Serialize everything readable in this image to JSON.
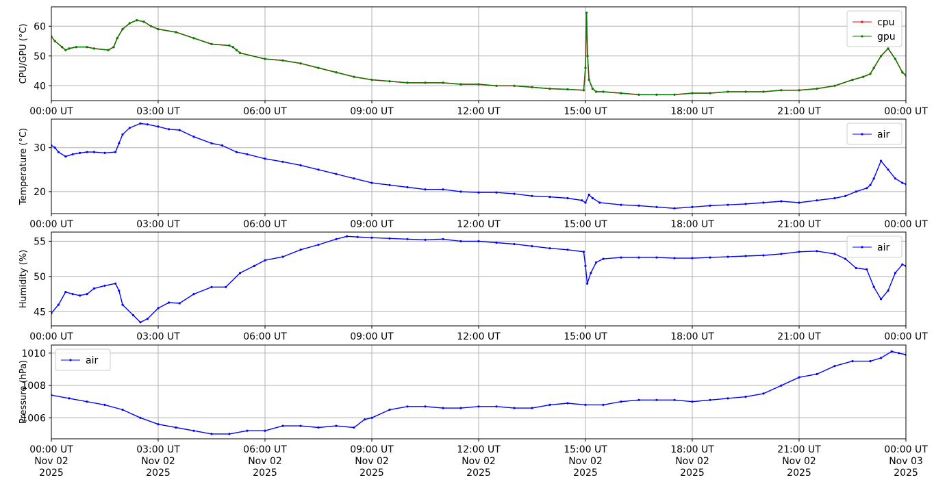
{
  "chart_data": [
    {
      "type": "line",
      "ylabel": "CPU/GPU (°C)",
      "xlabel": "",
      "ylim": [
        35,
        66.5
      ],
      "yticks": [
        40,
        50,
        60
      ],
      "grid": true,
      "legend_position": "upper-right",
      "x_unit": "hours UT, Nov 02 2025",
      "xlim": [
        0,
        24
      ],
      "x_tick_labels": [
        "00:00 UT",
        "03:00 UT",
        "06:00 UT",
        "09:00 UT",
        "12:00 UT",
        "15:00 UT",
        "18:00 UT",
        "21:00 UT",
        "00:00 UT"
      ],
      "series": [
        {
          "name": "cpu",
          "color": "#ff0000",
          "x": [
            0,
            0.1,
            0.3,
            0.4,
            0.5,
            0.7,
            1.0,
            1.2,
            1.6,
            1.75,
            1.85,
            2.0,
            2.2,
            2.4,
            2.6,
            2.8,
            3.0,
            3.5,
            4.0,
            4.5,
            5.0,
            5.1,
            5.2,
            5.3,
            6.0,
            6.5,
            7.0,
            7.5,
            8.0,
            8.5,
            9.0,
            9.5,
            10.0,
            10.5,
            11.0,
            11.5,
            12.0,
            12.5,
            13.0,
            13.5,
            14.0,
            14.5,
            14.95,
            15.0,
            15.03,
            15.06,
            15.1,
            15.2,
            15.3,
            15.5,
            16.0,
            16.5,
            17.0,
            17.5,
            18.0,
            18.5,
            19.0,
            19.5,
            20.0,
            20.5,
            21.0,
            21.5,
            22.0,
            22.5,
            22.8,
            23.0,
            23.1,
            23.3,
            23.5,
            23.7,
            23.9,
            24.0
          ],
          "y": [
            56.5,
            55,
            53,
            52,
            52.5,
            53,
            53,
            52.5,
            52,
            53,
            56,
            59,
            61,
            62,
            61.5,
            60,
            59,
            58,
            56,
            54,
            53.5,
            53,
            52,
            51,
            49,
            48.5,
            47.5,
            46,
            44.5,
            43,
            42,
            41.5,
            41,
            41,
            41,
            40.5,
            40.5,
            40,
            40,
            39.5,
            39,
            38.8,
            38.5,
            46,
            64.5,
            50,
            42,
            39,
            38,
            38,
            37.5,
            37,
            37,
            37,
            37.5,
            37.5,
            38,
            38,
            38,
            38.5,
            38.5,
            39,
            40,
            42,
            43,
            44,
            46,
            50,
            52.5,
            49,
            44.5,
            43.5
          ]
        },
        {
          "name": "gpu",
          "color": "#008000",
          "x": [
            0,
            0.1,
            0.3,
            0.4,
            0.5,
            0.7,
            1.0,
            1.2,
            1.6,
            1.75,
            1.85,
            2.0,
            2.2,
            2.4,
            2.6,
            2.8,
            3.0,
            3.5,
            4.0,
            4.5,
            5.0,
            5.1,
            5.2,
            5.3,
            6.0,
            6.5,
            7.0,
            7.5,
            8.0,
            8.5,
            9.0,
            9.5,
            10.0,
            10.5,
            11.0,
            11.5,
            12.0,
            12.5,
            13.0,
            13.5,
            14.0,
            14.5,
            14.95,
            15.0,
            15.03,
            15.06,
            15.1,
            15.2,
            15.3,
            15.5,
            16.0,
            16.5,
            17.0,
            17.5,
            18.0,
            18.5,
            19.0,
            19.5,
            20.0,
            20.5,
            21.0,
            21.5,
            22.0,
            22.5,
            22.8,
            23.0,
            23.1,
            23.3,
            23.5,
            23.7,
            23.9,
            24.0
          ],
          "y": [
            56.5,
            55,
            53,
            52,
            52.5,
            53,
            53,
            52.5,
            52,
            53,
            56,
            59,
            61,
            62,
            61.5,
            60,
            59,
            58,
            56,
            54,
            53.5,
            53,
            52,
            51,
            49,
            48.5,
            47.5,
            46,
            44.5,
            43,
            42,
            41.5,
            41,
            41,
            41,
            40.5,
            40.5,
            40,
            40,
            39.5,
            39,
            38.8,
            38.5,
            46,
            64.5,
            50,
            42,
            39,
            38,
            38,
            37.5,
            37,
            37,
            37,
            37.5,
            37.5,
            38,
            38,
            38,
            38.5,
            38.5,
            39,
            40,
            42,
            43,
            44,
            46,
            50,
            52.5,
            49,
            44.5,
            43.5
          ]
        }
      ]
    },
    {
      "type": "line",
      "ylabel": "Temperature (°C)",
      "xlabel": "",
      "ylim": [
        15,
        36.5
      ],
      "yticks": [
        20,
        30
      ],
      "grid": true,
      "legend_position": "upper-right",
      "xlim": [
        0,
        24
      ],
      "x_tick_labels": [
        "00:00 UT",
        "03:00 UT",
        "06:00 UT",
        "09:00 UT",
        "12:00 UT",
        "15:00 UT",
        "18:00 UT",
        "21:00 UT",
        "00:00 UT"
      ],
      "series": [
        {
          "name": "air",
          "color": "#0000ff",
          "x": [
            0,
            0.1,
            0.2,
            0.4,
            0.6,
            0.8,
            1.0,
            1.2,
            1.5,
            1.8,
            1.9,
            2.0,
            2.2,
            2.5,
            2.7,
            3.0,
            3.3,
            3.6,
            4.0,
            4.5,
            4.8,
            5.2,
            5.5,
            6.0,
            6.5,
            7.0,
            7.5,
            8.0,
            8.5,
            9.0,
            9.5,
            10.0,
            10.5,
            11.0,
            11.5,
            12.0,
            12.5,
            13.0,
            13.5,
            14.0,
            14.5,
            14.9,
            15.0,
            15.1,
            15.2,
            15.4,
            16.0,
            16.5,
            17.0,
            17.5,
            18.0,
            18.5,
            19.0,
            19.5,
            20.0,
            20.5,
            21.0,
            21.5,
            22.0,
            22.3,
            22.6,
            22.9,
            23.0,
            23.1,
            23.3,
            23.5,
            23.7,
            23.9,
            24.0
          ],
          "y": [
            30.5,
            30,
            29,
            28,
            28.5,
            28.8,
            29,
            29,
            28.8,
            29,
            31,
            33,
            34.5,
            35.5,
            35.3,
            34.8,
            34.2,
            34,
            32.5,
            31,
            30.5,
            29,
            28.5,
            27.5,
            26.8,
            26,
            25,
            24,
            23,
            22,
            21.5,
            21,
            20.5,
            20.5,
            20,
            19.8,
            19.8,
            19.5,
            19,
            18.8,
            18.5,
            18,
            17.5,
            19.3,
            18.5,
            17.5,
            17,
            16.8,
            16.5,
            16.2,
            16.5,
            16.8,
            17,
            17.2,
            17.5,
            17.8,
            17.5,
            18,
            18.5,
            19,
            20,
            20.8,
            21.5,
            23,
            27,
            25,
            23,
            22,
            21.7
          ]
        }
      ]
    },
    {
      "type": "line",
      "ylabel": "Humidity (%)",
      "xlabel": "",
      "ylim": [
        43,
        56.3
      ],
      "yticks": [
        45,
        50,
        55
      ],
      "grid": true,
      "legend_position": "upper-right",
      "xlim": [
        0,
        24
      ],
      "x_tick_labels": [
        "00:00 UT",
        "03:00 UT",
        "06:00 UT",
        "09:00 UT",
        "12:00 UT",
        "15:00 UT",
        "18:00 UT",
        "21:00 UT",
        "00:00 UT"
      ],
      "series": [
        {
          "name": "air",
          "color": "#0000ff",
          "x": [
            0,
            0.2,
            0.4,
            0.6,
            0.8,
            1.0,
            1.2,
            1.5,
            1.8,
            1.9,
            2.0,
            2.3,
            2.5,
            2.7,
            3.0,
            3.3,
            3.6,
            4.0,
            4.5,
            4.9,
            5.3,
            5.7,
            6.0,
            6.5,
            7.0,
            7.5,
            8.0,
            8.3,
            8.6,
            9.0,
            9.5,
            10.0,
            10.5,
            11.0,
            11.5,
            12.0,
            12.5,
            13.0,
            13.5,
            14.0,
            14.5,
            14.95,
            15.0,
            15.05,
            15.15,
            15.3,
            15.5,
            16.0,
            16.5,
            17.0,
            17.5,
            18.0,
            18.5,
            19.0,
            19.5,
            20.0,
            20.5,
            21.0,
            21.5,
            22.0,
            22.3,
            22.6,
            22.9,
            23.1,
            23.3,
            23.5,
            23.7,
            23.9,
            24.0
          ],
          "y": [
            44.8,
            46,
            47.8,
            47.5,
            47.3,
            47.5,
            48.3,
            48.7,
            49,
            48,
            46,
            44.5,
            43.5,
            44,
            45.5,
            46.3,
            46.2,
            47.5,
            48.5,
            48.5,
            50.5,
            51.5,
            52.3,
            52.8,
            53.8,
            54.5,
            55.3,
            55.7,
            55.6,
            55.5,
            55.4,
            55.3,
            55.2,
            55.3,
            55,
            55,
            54.8,
            54.6,
            54.3,
            54,
            53.8,
            53.5,
            51.5,
            49,
            50.5,
            52,
            52.5,
            52.7,
            52.7,
            52.7,
            52.6,
            52.6,
            52.7,
            52.8,
            52.9,
            53,
            53.2,
            53.5,
            53.6,
            53.2,
            52.5,
            51.2,
            51,
            48.5,
            46.8,
            48,
            50.5,
            51.7,
            51.5
          ]
        }
      ]
    },
    {
      "type": "line",
      "ylabel": "Pressure (hPa)",
      "xlabel": "",
      "ylim": [
        1004.7,
        1010.5
      ],
      "yticks": [
        1006,
        1008,
        1010
      ],
      "grid": true,
      "legend_position": "upper-left",
      "xlim": [
        0,
        24
      ],
      "x_tick_labels": [
        "00:00 UT\nNov 02\n2025",
        "03:00 UT\nNov 02\n2025",
        "06:00 UT\nNov 02\n2025",
        "09:00 UT\nNov 02\n2025",
        "12:00 UT\nNov 02\n2025",
        "15:00 UT\nNov 02\n2025",
        "18:00 UT\nNov 02\n2025",
        "21:00 UT\nNov 02\n2025",
        "00:00 UT\nNov 03\n2025"
      ],
      "series": [
        {
          "name": "air",
          "color": "#0000ff",
          "x": [
            0,
            0.5,
            1.0,
            1.5,
            2.0,
            2.5,
            3.0,
            3.5,
            4.0,
            4.5,
            5.0,
            5.5,
            6.0,
            6.5,
            7.0,
            7.5,
            8.0,
            8.5,
            8.8,
            9.0,
            9.5,
            10.0,
            10.5,
            11.0,
            11.5,
            12.0,
            12.5,
            13.0,
            13.5,
            14.0,
            14.5,
            15.0,
            15.5,
            16.0,
            16.5,
            17.0,
            17.5,
            18.0,
            18.5,
            19.0,
            19.5,
            20.0,
            20.5,
            21.0,
            21.5,
            22.0,
            22.5,
            23.0,
            23.3,
            23.6,
            23.8,
            24.0
          ],
          "y": [
            1007.4,
            1007.2,
            1007.0,
            1006.8,
            1006.5,
            1006.0,
            1005.6,
            1005.4,
            1005.2,
            1005.0,
            1005.0,
            1005.2,
            1005.2,
            1005.5,
            1005.5,
            1005.4,
            1005.5,
            1005.4,
            1005.9,
            1006.0,
            1006.5,
            1006.7,
            1006.7,
            1006.6,
            1006.6,
            1006.7,
            1006.7,
            1006.6,
            1006.6,
            1006.8,
            1006.9,
            1006.8,
            1006.8,
            1007.0,
            1007.1,
            1007.1,
            1007.1,
            1007.0,
            1007.1,
            1007.2,
            1007.3,
            1007.5,
            1008.0,
            1008.5,
            1008.7,
            1009.2,
            1009.5,
            1009.5,
            1009.7,
            1010.1,
            1010.0,
            1009.9
          ]
        }
      ]
    }
  ]
}
